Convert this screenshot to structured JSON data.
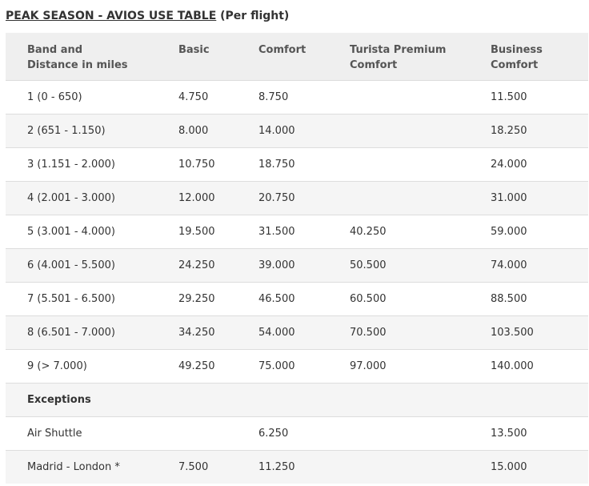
{
  "heading": {
    "title": "PEAK SEASON - AVIOS USE TABLE",
    "suffix": "(Per flight)"
  },
  "table": {
    "headers": [
      "Band and\nDistance in miles",
      "Basic",
      "Comfort",
      "Turista Premium\nComfort",
      "Business\nComfort"
    ],
    "header_lines": [
      [
        "Band and",
        "Distance in miles"
      ],
      [
        "Basic"
      ],
      [
        "Comfort"
      ],
      [
        "Turista Premium",
        "Comfort"
      ],
      [
        "Business",
        "Comfort"
      ]
    ],
    "rows": [
      [
        "1 (0 - 650)",
        "4.750",
        "8.750",
        "",
        "11.500"
      ],
      [
        "2 (651 - 1.150)",
        "8.000",
        "14.000",
        "",
        "18.250"
      ],
      [
        "3 (1.151 - 2.000)",
        "10.750",
        "18.750",
        "",
        "24.000"
      ],
      [
        "4 (2.001 - 3.000)",
        "12.000",
        "20.750",
        "",
        "31.000"
      ],
      [
        "5 (3.001 - 4.000)",
        "19.500",
        "31.500",
        "40.250",
        "59.000"
      ],
      [
        "6 (4.001 - 5.500)",
        "24.250",
        "39.000",
        "50.500",
        "74.000"
      ],
      [
        "7 (5.501 - 6.500)",
        "29.250",
        "46.500",
        "60.500",
        "88.500"
      ],
      [
        "8 (6.501 - 7.000)",
        "34.250",
        "54.000",
        "70.500",
        "103.500"
      ],
      [
        "9 (> 7.000)",
        "49.250",
        "75.000",
        "97.000",
        "140.000"
      ],
      [
        "Exceptions",
        "",
        "",
        "",
        ""
      ],
      [
        "Air Shuttle",
        "",
        "6.250",
        "",
        "13.500"
      ],
      [
        "Madrid - London *",
        "7.500",
        "11.250",
        "",
        "15.000"
      ]
    ]
  }
}
